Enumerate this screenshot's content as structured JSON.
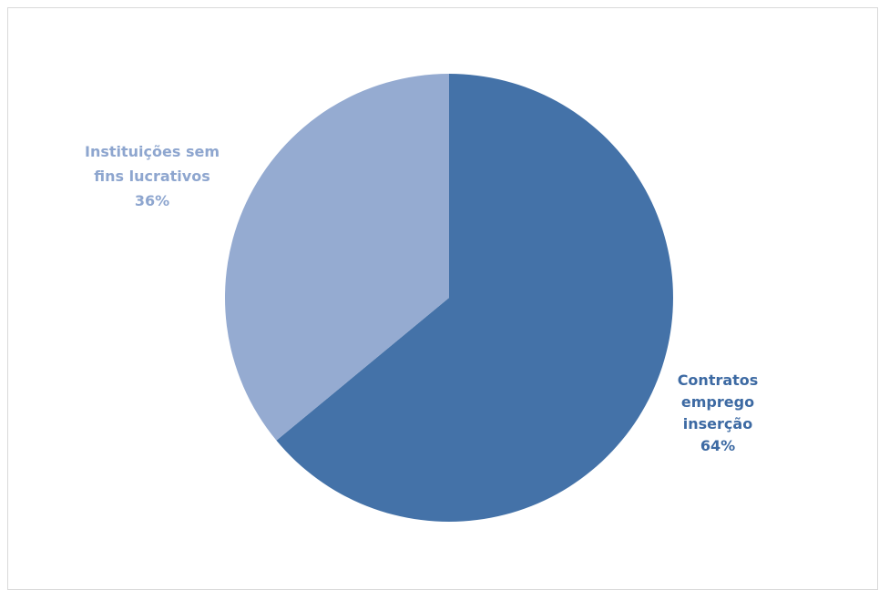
{
  "chart_data": {
    "type": "pie",
    "title": "",
    "start_angle_deg": 0,
    "direction": "clockwise",
    "slices": [
      {
        "label_lines": [
          "Contratos",
          "emprego",
          "inserção"
        ],
        "value": 64,
        "value_label": "64%",
        "color": "#4472a8",
        "label_color": "#3d6aa3"
      },
      {
        "label_lines": [
          "Instituições sem",
          "fins lucrativos"
        ],
        "value": 36,
        "value_label": "36%",
        "color": "#95abd1",
        "label_color": "#8ea6cf"
      }
    ],
    "legend": "none",
    "data_labels": "outside"
  }
}
